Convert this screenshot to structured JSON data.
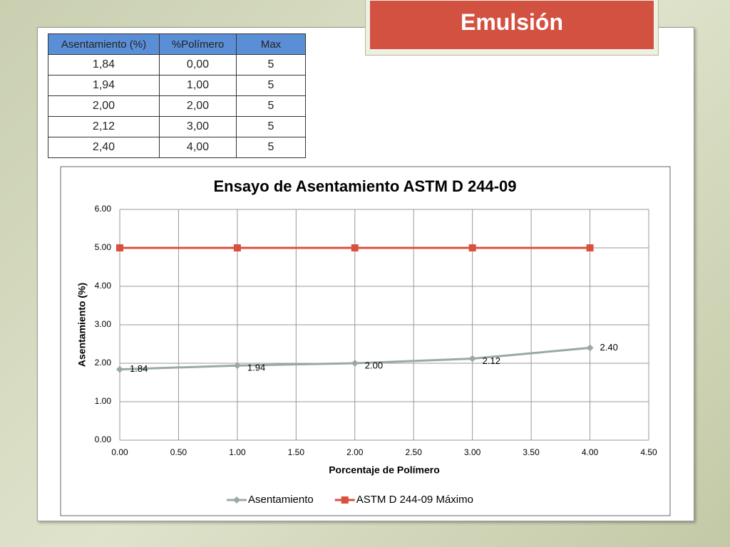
{
  "title": "Emulsión",
  "table": {
    "header": [
      "Asentamiento (%)",
      "%Polímero",
      "Max"
    ],
    "rows": [
      [
        "1,84",
        "0,00",
        "5"
      ],
      [
        "1,94",
        "1,00",
        "5"
      ],
      [
        "2,00",
        "2,00",
        "5"
      ],
      [
        "2,12",
        "3,00",
        "5"
      ],
      [
        "2,40",
        "4,00",
        "5"
      ]
    ]
  },
  "chart_data": {
    "type": "line",
    "title": "Ensayo de Asentamiento ASTM D 244-09",
    "x_label": "Porcentaje de Polímero",
    "y_label": "Asentamiento (%)",
    "x": [
      0,
      1,
      2,
      3,
      4
    ],
    "series": [
      {
        "name": "Asentamiento",
        "color": "#9aa9a4",
        "marker": "diamond",
        "values": [
          1.84,
          1.94,
          2.0,
          2.12,
          2.4
        ],
        "value_labels": [
          "1.84",
          "1.94",
          "2.00",
          "2.12",
          "2.40"
        ]
      },
      {
        "name": "ASTM D 244-09 Máximo",
        "color": "#d9503f",
        "marker": "square",
        "values": [
          5,
          5,
          5,
          5,
          5
        ]
      }
    ],
    "xlim": [
      0,
      4.5
    ],
    "ylim": [
      0,
      6
    ],
    "xticks": [
      {
        "value": 0,
        "label": "0.00"
      },
      {
        "value": 0.5,
        "label": "0.50"
      },
      {
        "value": 1,
        "label": "1.00"
      },
      {
        "value": 1.5,
        "label": "1.50"
      },
      {
        "value": 2,
        "label": "2.00"
      },
      {
        "value": 2.5,
        "label": "2.50"
      },
      {
        "value": 3,
        "label": "3.00"
      },
      {
        "value": 3.5,
        "label": "3.50"
      },
      {
        "value": 4,
        "label": "4.00"
      },
      {
        "value": 4.5,
        "label": "4.50"
      }
    ],
    "yticks": [
      {
        "value": 0,
        "label": "0.00"
      },
      {
        "value": 1,
        "label": "1.00"
      },
      {
        "value": 2,
        "label": "2.00"
      },
      {
        "value": 3,
        "label": "3.00"
      },
      {
        "value": 4,
        "label": "4.00"
      },
      {
        "value": 5,
        "label": "5.00"
      },
      {
        "value": 6,
        "label": "6.00"
      }
    ],
    "grid": true,
    "legend": "bottom"
  }
}
